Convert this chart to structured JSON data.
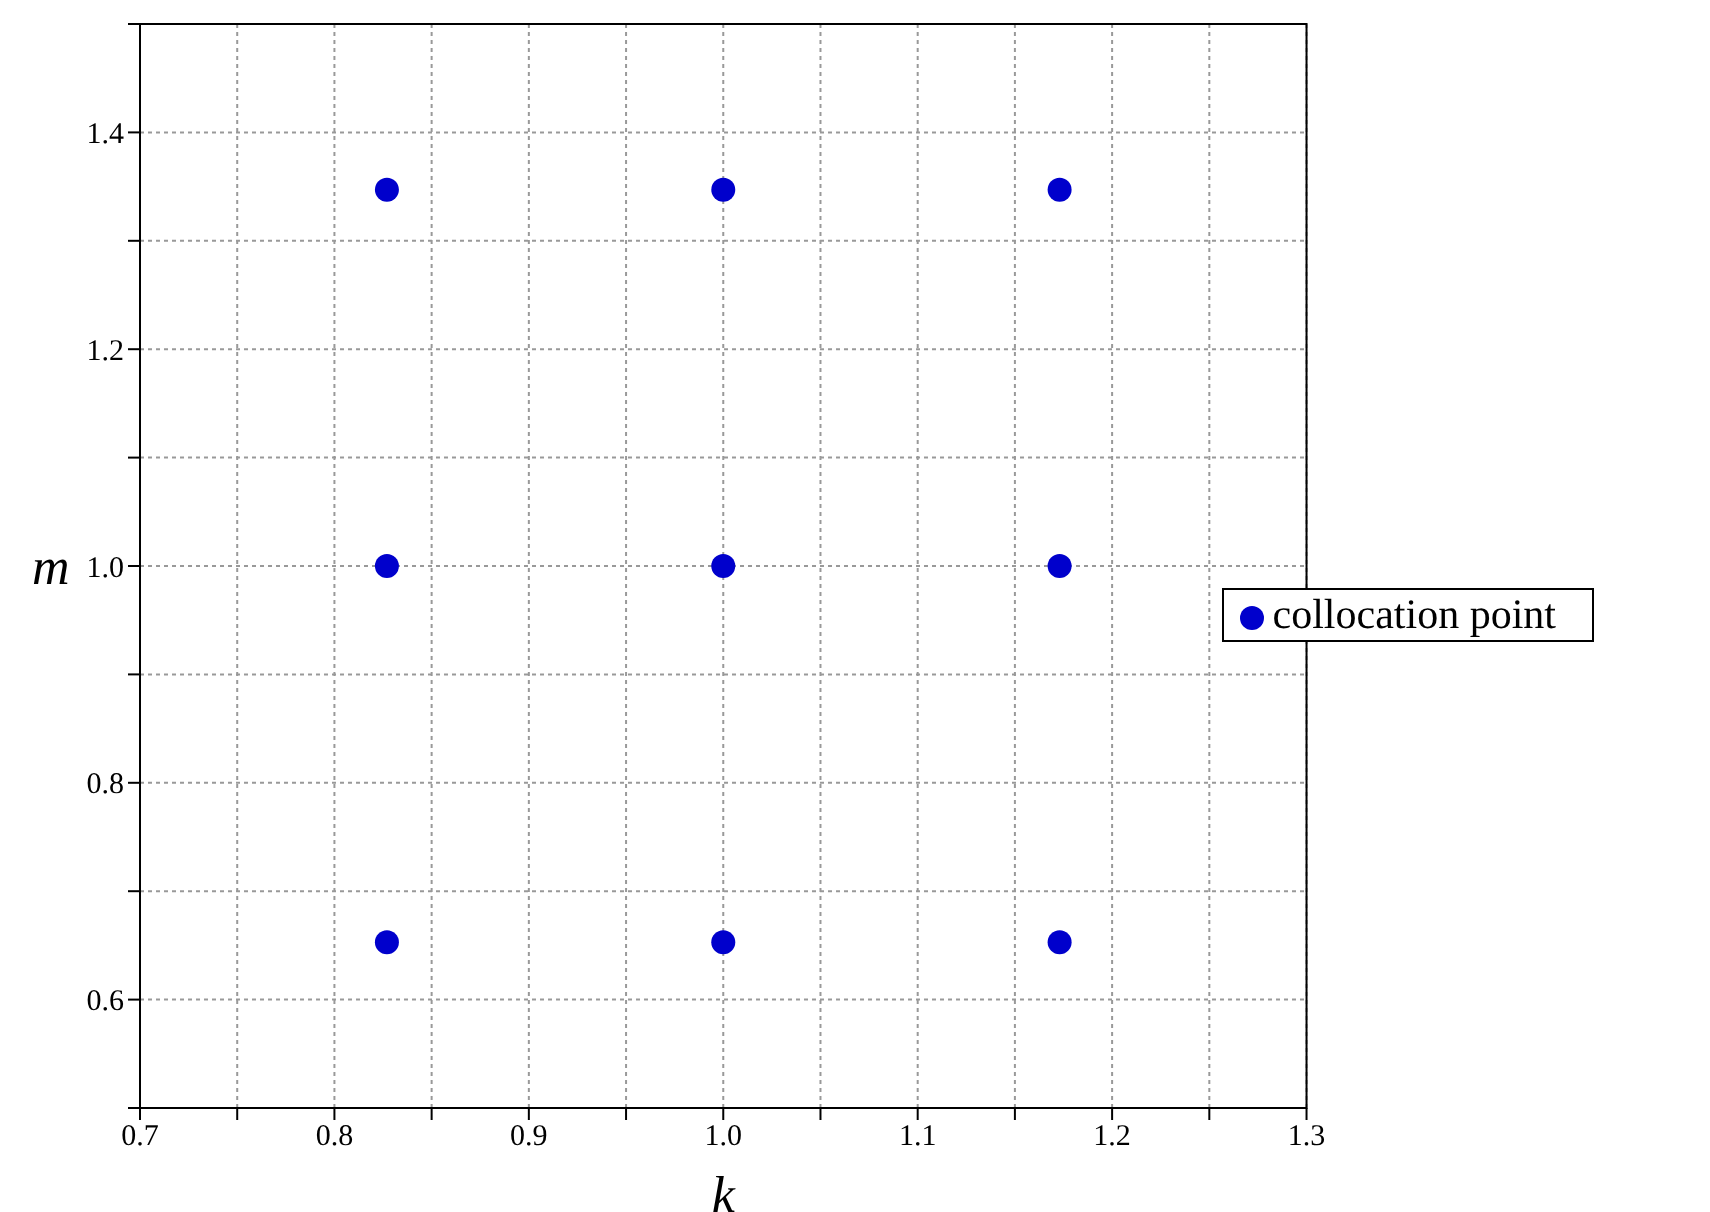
{
  "chart_data": {
    "type": "scatter",
    "xlabel": "k",
    "ylabel": "m",
    "x": [
      0.827,
      1.0,
      1.173,
      0.827,
      1.0,
      1.173,
      0.827,
      1.0,
      1.173
    ],
    "series": [
      {
        "name": "collocation point",
        "color": "#0000cc",
        "values": [
          1.347,
          1.347,
          1.347,
          1.0,
          1.0,
          1.0,
          0.653,
          0.653,
          0.653
        ]
      }
    ],
    "xlim": [
      0.7,
      1.3
    ],
    "xticks": [
      0.7,
      {
        "value": 0.75,
        "label": null
      },
      0.8,
      {
        "value": 0.85,
        "label": null
      },
      0.9,
      {
        "value": 0.95,
        "label": null
      },
      {
        "value": 1.0,
        "label": "1.0"
      },
      {
        "value": 1.05,
        "label": null
      },
      1.1,
      {
        "value": 1.15,
        "label": null
      },
      1.2,
      {
        "value": 1.25,
        "label": null
      },
      1.3
    ],
    "ylim": [
      0.5,
      1.5
    ],
    "yticks": [
      {
        "value": 0.5,
        "label": null
      },
      0.6,
      {
        "value": 0.7,
        "label": null
      },
      0.8,
      {
        "value": 0.9,
        "label": null
      },
      {
        "value": 1.0,
        "label": "1.0"
      },
      {
        "value": 1.1,
        "label": null
      },
      1.2,
      {
        "value": 1.3,
        "label": null
      },
      1.4,
      {
        "value": 1.5,
        "label": null
      }
    ],
    "grid": true,
    "legend": "right",
    "marker": "circle"
  }
}
